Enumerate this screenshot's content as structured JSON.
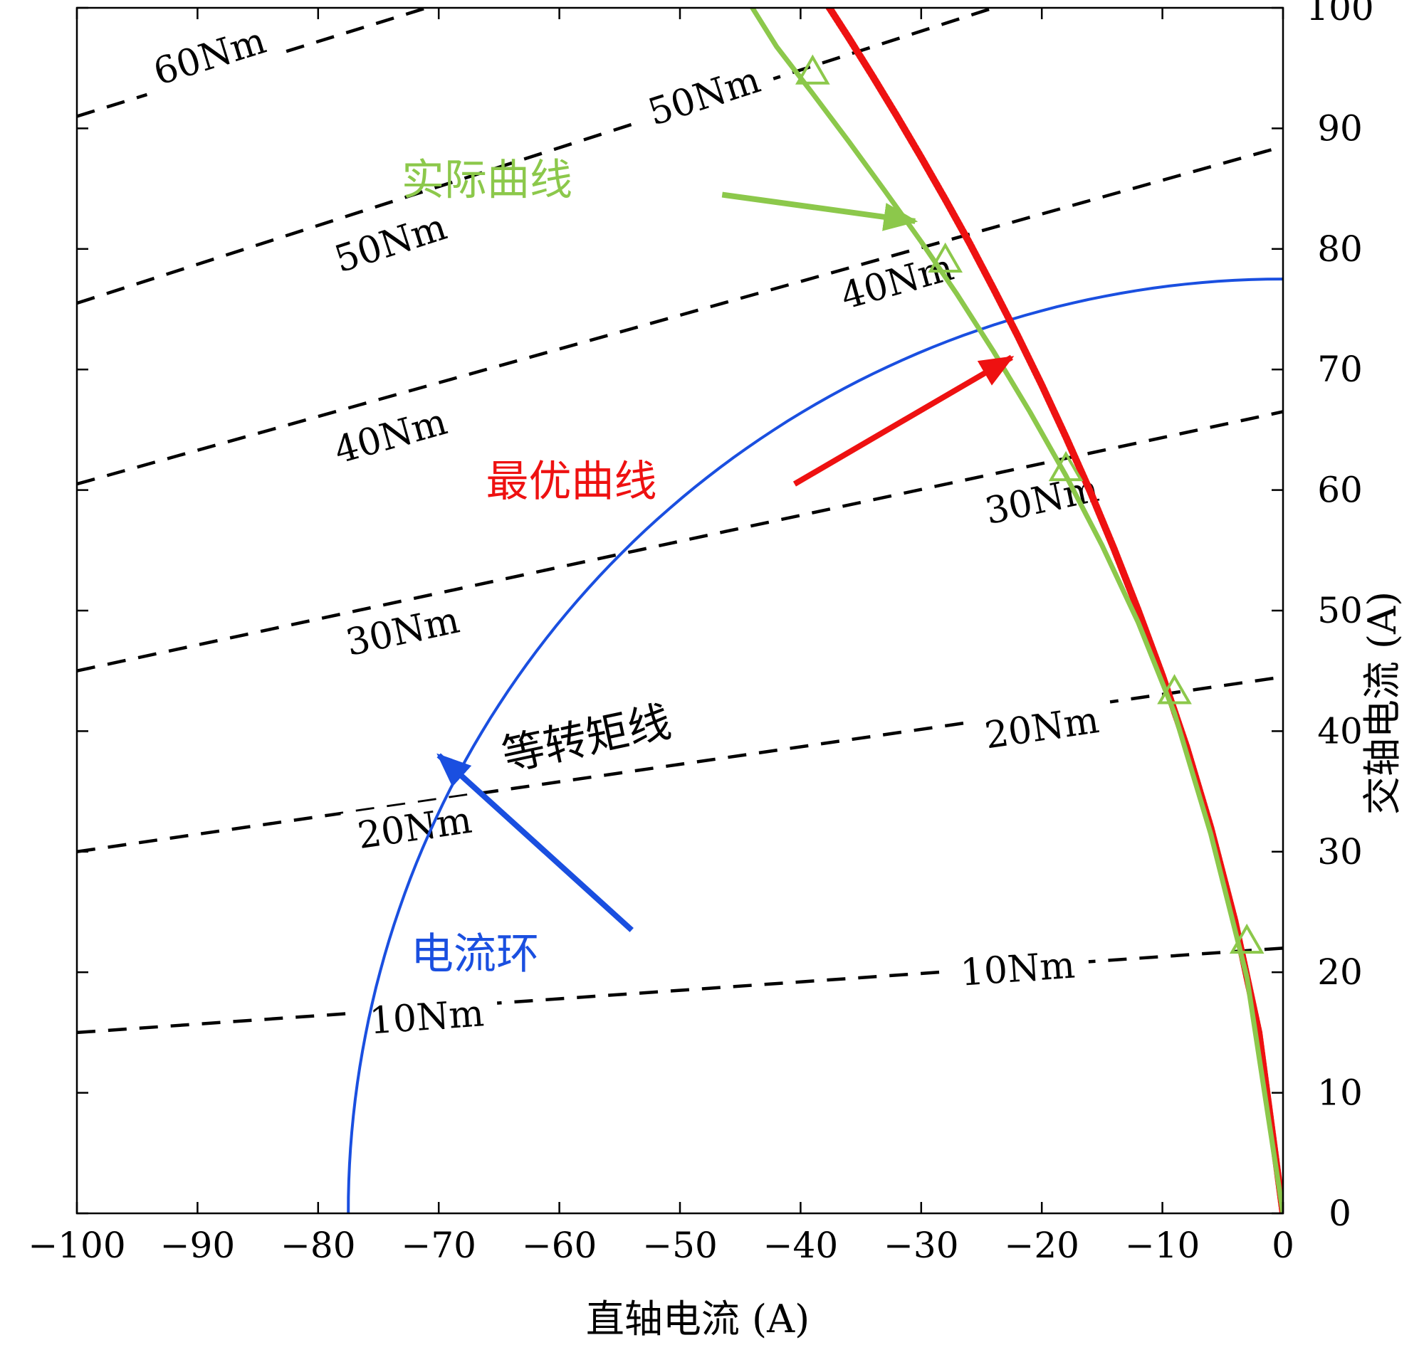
{
  "chart_data": {
    "type": "line",
    "xlabel": "直轴电流 (A)",
    "ylabel": "交轴电流 (A)",
    "xlim": [
      -100,
      0
    ],
    "ylim": [
      0,
      100
    ],
    "xticks": [
      -100,
      -90,
      -80,
      -70,
      -60,
      -50,
      -40,
      -30,
      -20,
      -10,
      0
    ],
    "xtick_labels": [
      "−100",
      "−90",
      "−80",
      "−70",
      "−60",
      "−50",
      "−40",
      "−30",
      "−20",
      "−10",
      "0"
    ],
    "yticks": [
      0,
      10,
      20,
      30,
      40,
      50,
      60,
      70,
      80,
      90,
      100
    ],
    "ytick_labels": [
      "0",
      "10",
      "20",
      "30",
      "40",
      "50",
      "60",
      "70",
      "80",
      "90",
      "100"
    ],
    "grid": false,
    "colors": {
      "iso_torque": "#000000",
      "current_loop": "#1a4fe0",
      "optimal": "#ee1111",
      "actual": "#8cc84b"
    },
    "iso_torque_lines": [
      {
        "label": "10Nm",
        "x": [
          -100,
          0
        ],
        "y": [
          15.0,
          22.0
        ],
        "label_at": [
          [
            -71,
            16.3
          ],
          [
            -22,
            20.3
          ]
        ]
      },
      {
        "label": "20Nm",
        "x": [
          -100,
          0
        ],
        "y": [
          30.0,
          44.5
        ],
        "label_at": [
          [
            -72,
            32.0
          ],
          [
            -20,
            40.3
          ]
        ]
      },
      {
        "label": "30Nm",
        "x": [
          -100,
          0
        ],
        "y": [
          45.0,
          66.5
        ],
        "label_at": [
          [
            -73,
            48.3
          ],
          [
            -20,
            59.2
          ]
        ]
      },
      {
        "label": "40Nm",
        "x": [
          -100,
          0
        ],
        "y": [
          60.5,
          88.5
        ],
        "label_at": [
          [
            -74,
            64.5
          ],
          [
            -32,
            77.3
          ]
        ]
      },
      {
        "label": "50Nm",
        "x": [
          -100,
          -24
        ],
        "y": [
          75.5,
          100.0
        ],
        "label_at": [
          [
            -74,
            80.5
          ],
          [
            -48,
            92.7
          ]
        ]
      },
      {
        "label": "60Nm",
        "x": [
          -100,
          -71
        ],
        "y": [
          91.0,
          100.0
        ],
        "label_at": [
          [
            -89,
            96.0
          ]
        ]
      }
    ],
    "current_loop": {
      "label": "电流环",
      "radius": 77.5
    },
    "series": [
      {
        "name": "最优曲线",
        "x": [
          0,
          -2,
          -4,
          -6,
          -8,
          -10,
          -12,
          -14,
          -16,
          -18,
          -20,
          -22,
          -24,
          -26,
          -28,
          -30,
          -32,
          -34,
          -36,
          -38,
          -39.5
        ],
        "y": [
          0,
          15.0,
          24.3,
          32.0,
          38.7,
          44.6,
          50.0,
          55.1,
          59.9,
          64.4,
          68.7,
          72.8,
          76.7,
          80.5,
          84.1,
          87.6,
          91.0,
          94.3,
          97.5,
          100.6,
          102.8
        ]
      },
      {
        "name": "实际曲线",
        "x": [
          0,
          -3,
          -6,
          -9,
          -12,
          -15,
          -18,
          -21,
          -24,
          -27,
          -30,
          -33,
          -36,
          -39,
          -42,
          -44.5
        ],
        "y": [
          0,
          19.6,
          31.5,
          41.5,
          49.0,
          55.4,
          61.2,
          66.5,
          71.5,
          76.2,
          80.6,
          84.8,
          88.9,
          92.9,
          96.8,
          100.8
        ],
        "markers": [
          [
            -3,
            22.5
          ],
          [
            -9,
            43.2
          ],
          [
            -18,
            61.7
          ],
          [
            -28,
            79.0
          ],
          [
            -39,
            94.6
          ]
        ]
      }
    ],
    "annotations": [
      {
        "text": "实际曲线",
        "color": "#8cc84b",
        "text_at": [
          -66,
          84.5
        ],
        "arrow_from": [
          -46.5,
          84.5
        ],
        "arrow_to": [
          -30.5,
          82.3
        ]
      },
      {
        "text": "最优曲线",
        "color": "#ee1111",
        "text_at": [
          -59,
          59.5
        ],
        "arrow_from": [
          -40.5,
          60.5
        ],
        "arrow_to": [
          -22.5,
          71.0
        ]
      },
      {
        "text": "电流环",
        "color": "#1a4fe0",
        "text_at": [
          -67,
          20.3
        ],
        "arrow_from": [
          -54,
          23.5
        ],
        "arrow_to": [
          -70,
          38.0
        ]
      },
      {
        "text": "等转矩线",
        "color": "#000000",
        "text_at": [
          -57.5,
          38.2
        ],
        "angle": -12
      }
    ]
  }
}
